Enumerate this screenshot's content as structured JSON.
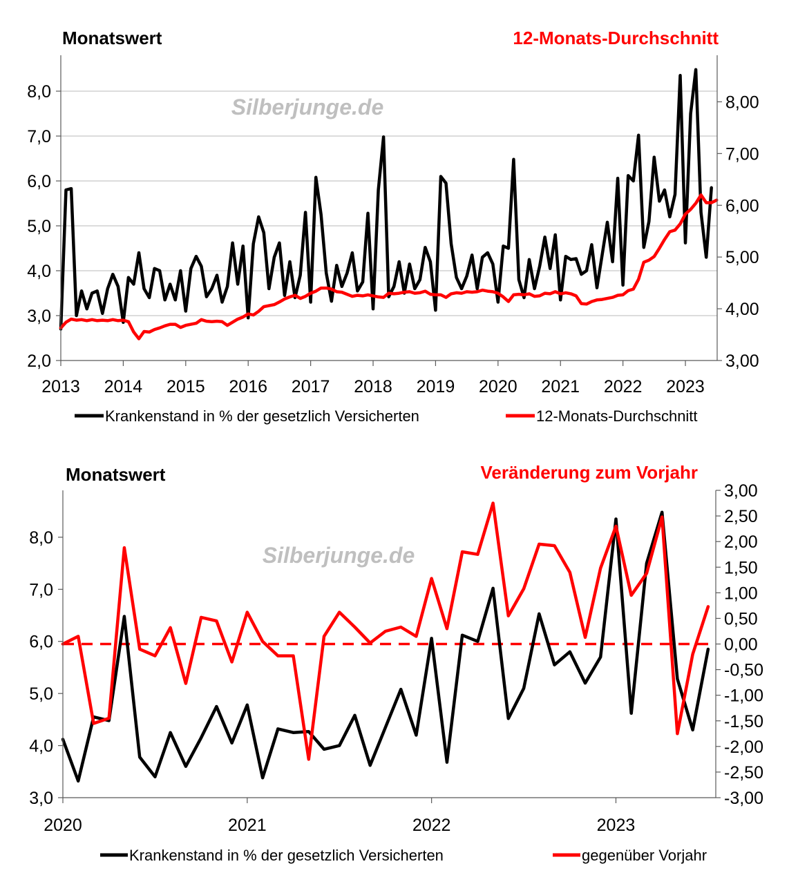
{
  "colors": {
    "black_series": "#000000",
    "red_series": "#ff0000",
    "watermark": "#bfbfbf"
  },
  "chart_data": [
    {
      "type": "line",
      "title_left": "Monatswert",
      "title_right": "12-Monats-Durchschnitt",
      "watermark": "Silberjunge.de",
      "x_ticks": [
        "2013",
        "2014",
        "2015",
        "2016",
        "2017",
        "2018",
        "2019",
        "2020",
        "2021",
        "2022",
        "2023"
      ],
      "y_left": {
        "ticks": [
          "2,0",
          "3,0",
          "4,0",
          "5,0",
          "6,0",
          "7,0",
          "8,0"
        ],
        "lim": [
          2.0,
          8.8
        ]
      },
      "y_right": {
        "ticks": [
          "3,00",
          "4,00",
          "5,00",
          "6,00",
          "7,00",
          "8,00"
        ],
        "lim": [
          3.0,
          8.9
        ]
      },
      "legend": [
        "Krankenstand in % der gesetzlich Versicherten",
        "12-Monats-Durchschnitt"
      ],
      "series": [
        {
          "name": "Krankenstand in % der gesetzlich Versicherten",
          "axis": "left",
          "start": "2013-01",
          "values": [
            2.7,
            5.8,
            5.83,
            3.0,
            3.55,
            3.15,
            3.5,
            3.55,
            3.05,
            3.6,
            3.92,
            3.65,
            2.85,
            3.85,
            3.7,
            4.4,
            3.6,
            3.4,
            4.05,
            4.0,
            3.35,
            3.7,
            3.35,
            4.0,
            3.1,
            4.05,
            4.32,
            4.1,
            3.42,
            3.6,
            3.9,
            3.3,
            3.65,
            4.62,
            3.7,
            4.55,
            2.95,
            4.6,
            5.2,
            4.85,
            3.6,
            4.3,
            4.62,
            3.45,
            4.2,
            3.4,
            3.9,
            5.3,
            3.3,
            6.08,
            5.25,
            3.95,
            3.32,
            4.12,
            3.65,
            3.95,
            4.4,
            3.55,
            3.75,
            5.28,
            3.15,
            5.8,
            6.98,
            3.42,
            3.65,
            4.2,
            3.5,
            4.15,
            3.6,
            3.8,
            4.52,
            4.2,
            3.12,
            6.1,
            5.95,
            4.6,
            3.85,
            3.6,
            3.88,
            4.35,
            3.6,
            4.3,
            4.4,
            4.15,
            3.3,
            4.55,
            4.5,
            6.48,
            3.8,
            3.4,
            4.25,
            3.6,
            4.1,
            4.75,
            4.05,
            4.8,
            3.35,
            4.32,
            4.25,
            4.27,
            3.92,
            4.0,
            4.58,
            3.62,
            4.35,
            5.08,
            4.2,
            6.06,
            3.68,
            6.12,
            6.0,
            7.02,
            4.52,
            5.1,
            6.53,
            5.55,
            5.8,
            5.2,
            5.7,
            8.35,
            4.62,
            7.5,
            8.48,
            5.3,
            4.3,
            5.85
          ]
        },
        {
          "name": "12-Monats-Durchschnitt",
          "axis": "right",
          "start": "2013-01",
          "values": [
            3.63,
            3.74,
            3.8,
            3.78,
            3.79,
            3.77,
            3.79,
            3.77,
            3.78,
            3.77,
            3.79,
            3.77,
            3.78,
            3.75,
            3.55,
            3.42,
            3.56,
            3.55,
            3.6,
            3.63,
            3.67,
            3.7,
            3.7,
            3.64,
            3.68,
            3.7,
            3.72,
            3.79,
            3.76,
            3.75,
            3.76,
            3.75,
            3.68,
            3.74,
            3.8,
            3.84,
            3.9,
            3.88,
            3.95,
            4.04,
            4.06,
            4.08,
            4.13,
            4.19,
            4.23,
            4.26,
            4.2,
            4.24,
            4.3,
            4.34,
            4.4,
            4.4,
            4.38,
            4.33,
            4.32,
            4.28,
            4.24,
            4.26,
            4.25,
            4.27,
            4.25,
            4.23,
            4.22,
            4.3,
            4.29,
            4.3,
            4.32,
            4.33,
            4.3,
            4.31,
            4.34,
            4.28,
            4.27,
            4.27,
            4.22,
            4.29,
            4.31,
            4.3,
            4.33,
            4.32,
            4.33,
            4.36,
            4.34,
            4.33,
            4.3,
            4.23,
            4.14,
            4.27,
            4.28,
            4.27,
            4.29,
            4.24,
            4.25,
            4.3,
            4.29,
            4.33,
            4.29,
            4.31,
            4.29,
            4.25,
            4.1,
            4.09,
            4.14,
            4.17,
            4.18,
            4.2,
            4.22,
            4.26,
            4.27,
            4.35,
            4.38,
            4.57,
            4.9,
            4.94,
            5.01,
            5.17,
            5.34,
            5.49,
            5.52,
            5.64,
            5.83,
            5.92,
            6.04,
            6.2,
            6.05,
            6.05,
            6.1
          ]
        }
      ]
    },
    {
      "type": "line",
      "title_left": "Monatswert",
      "title_right": "Veränderung zum Vorjahr",
      "watermark": "Silberjunge.de",
      "x_ticks": [
        "2020",
        "2021",
        "2022",
        "2023"
      ],
      "y_left": {
        "ticks": [
          "3,0",
          "4,0",
          "5,0",
          "6,0",
          "7,0",
          "8,0"
        ],
        "lim": [
          3.0,
          8.9
        ]
      },
      "y_right": {
        "ticks": [
          "-3,00",
          "-2,50",
          "-2,00",
          "-1,50",
          "-1,00",
          "-0,50",
          "0,00",
          "0,50",
          "1,00",
          "1,50",
          "2,00",
          "2,50",
          "3,00"
        ],
        "lim": [
          -3.0,
          3.0
        ]
      },
      "reference_line": {
        "axis": "right",
        "value": 0.0,
        "style": "dashed"
      },
      "legend": [
        "Krankenstand in % der gesetzlich Versicherten",
        "gegenüber Vorjahr"
      ],
      "series": [
        {
          "name": "Krankenstand in % der gesetzlich Versicherten",
          "axis": "left",
          "start": "2020-01",
          "values": [
            4.12,
            3.32,
            4.55,
            4.48,
            6.48,
            3.78,
            3.4,
            4.25,
            3.6,
            4.15,
            4.75,
            4.05,
            4.78,
            3.38,
            4.32,
            4.25,
            4.27,
            3.93,
            4.0,
            4.58,
            3.62,
            4.35,
            5.08,
            4.2,
            6.06,
            3.68,
            6.12,
            6.0,
            7.02,
            4.52,
            5.1,
            6.53,
            5.55,
            5.8,
            5.2,
            5.7,
            8.35,
            4.62,
            7.5,
            8.48,
            5.28,
            4.3,
            5.85
          ]
        },
        {
          "name": "gegenüber Vorjahr",
          "axis": "right",
          "start": "2020-01",
          "values": [
            0.0,
            0.15,
            -1.55,
            -1.45,
            1.88,
            -0.1,
            -0.23,
            0.32,
            -0.77,
            0.52,
            0.45,
            -0.35,
            0.62,
            0.05,
            -0.23,
            -0.23,
            -2.25,
            0.15,
            0.62,
            0.33,
            0.02,
            0.25,
            0.33,
            0.15,
            1.28,
            0.3,
            1.8,
            1.75,
            2.75,
            0.55,
            1.08,
            1.95,
            1.92,
            1.4,
            0.13,
            1.48,
            2.3,
            0.95,
            1.38,
            2.48,
            -1.75,
            -0.2,
            0.73
          ]
        }
      ]
    }
  ]
}
